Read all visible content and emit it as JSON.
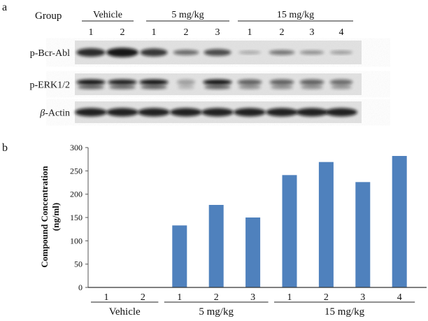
{
  "panel_a": {
    "label": "a",
    "group_label": "Group",
    "groups": [
      {
        "name": "Vehicle",
        "lanes": [
          "1",
          "2"
        ]
      },
      {
        "name": "5 mg/kg",
        "lanes": [
          "1",
          "2",
          "3"
        ]
      },
      {
        "name": "15 mg/kg",
        "lanes": [
          "1",
          "2",
          "3",
          "4"
        ]
      }
    ],
    "blots": [
      {
        "label": "p-Bcr-Abl"
      },
      {
        "label": "p-ERK1/2"
      },
      {
        "label_prefix": "β",
        "label": "-Actin"
      }
    ]
  },
  "panel_b": {
    "label": "b"
  },
  "chart_data": {
    "type": "bar",
    "ylabel_line1": "Compound Concentration",
    "ylabel_line2": "(ng/ml)",
    "xlabel": "",
    "ylim": [
      0,
      300
    ],
    "yticks": [
      0,
      50,
      100,
      150,
      200,
      250,
      300
    ],
    "grid": false,
    "bar_color": "#4f81bd",
    "groups": [
      "Vehicle",
      "5 mg/kg",
      "15 mg/kg"
    ],
    "categories": [
      "1",
      "2",
      "1",
      "2",
      "3",
      "1",
      "2",
      "3",
      "4"
    ],
    "category_groups": [
      "Vehicle",
      "Vehicle",
      "5 mg/kg",
      "5 mg/kg",
      "5 mg/kg",
      "15 mg/kg",
      "15 mg/kg",
      "15 mg/kg",
      "15 mg/kg"
    ],
    "values": [
      0,
      0,
      133,
      177,
      150,
      241,
      269,
      226,
      282
    ]
  }
}
